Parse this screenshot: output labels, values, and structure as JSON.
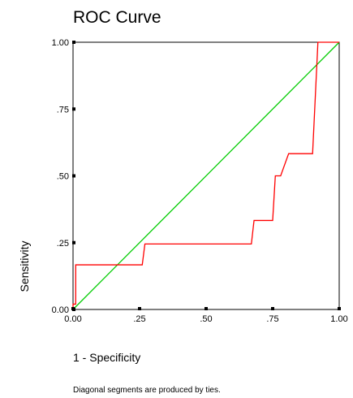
{
  "chart_data": {
    "type": "line",
    "title": "ROC Curve",
    "xlabel": "1 - Specificity",
    "ylabel": "Sensitivity",
    "footnote": "Diagonal segments are produced by ties.",
    "xlim": [
      0,
      1
    ],
    "ylim": [
      0,
      1
    ],
    "x_ticks": [
      0,
      0.25,
      0.5,
      0.75,
      1
    ],
    "x_tick_labels": [
      "0.00",
      ".25",
      ".50",
      ".75",
      "1.00"
    ],
    "y_ticks": [
      0,
      0.25,
      0.5,
      0.75,
      1
    ],
    "y_tick_labels": [
      "0.00",
      ".25",
      ".50",
      ".75",
      "1.00"
    ],
    "grid": false,
    "series": [
      {
        "color": "#ff0000",
        "points": [
          [
            0.0,
            0.0
          ],
          [
            0.0,
            0.02
          ],
          [
            0.01,
            0.02
          ],
          [
            0.01,
            0.167
          ],
          [
            0.26,
            0.167
          ],
          [
            0.27,
            0.245
          ],
          [
            0.67,
            0.245
          ],
          [
            0.68,
            0.333
          ],
          [
            0.75,
            0.333
          ],
          [
            0.76,
            0.5
          ],
          [
            0.78,
            0.5
          ],
          [
            0.81,
            0.583
          ],
          [
            0.9,
            0.583
          ],
          [
            0.92,
            1.0
          ],
          [
            1.0,
            1.0
          ]
        ]
      },
      {
        "color": "#00cc00",
        "points": [
          [
            0,
            0
          ],
          [
            1,
            1
          ]
        ]
      }
    ]
  }
}
